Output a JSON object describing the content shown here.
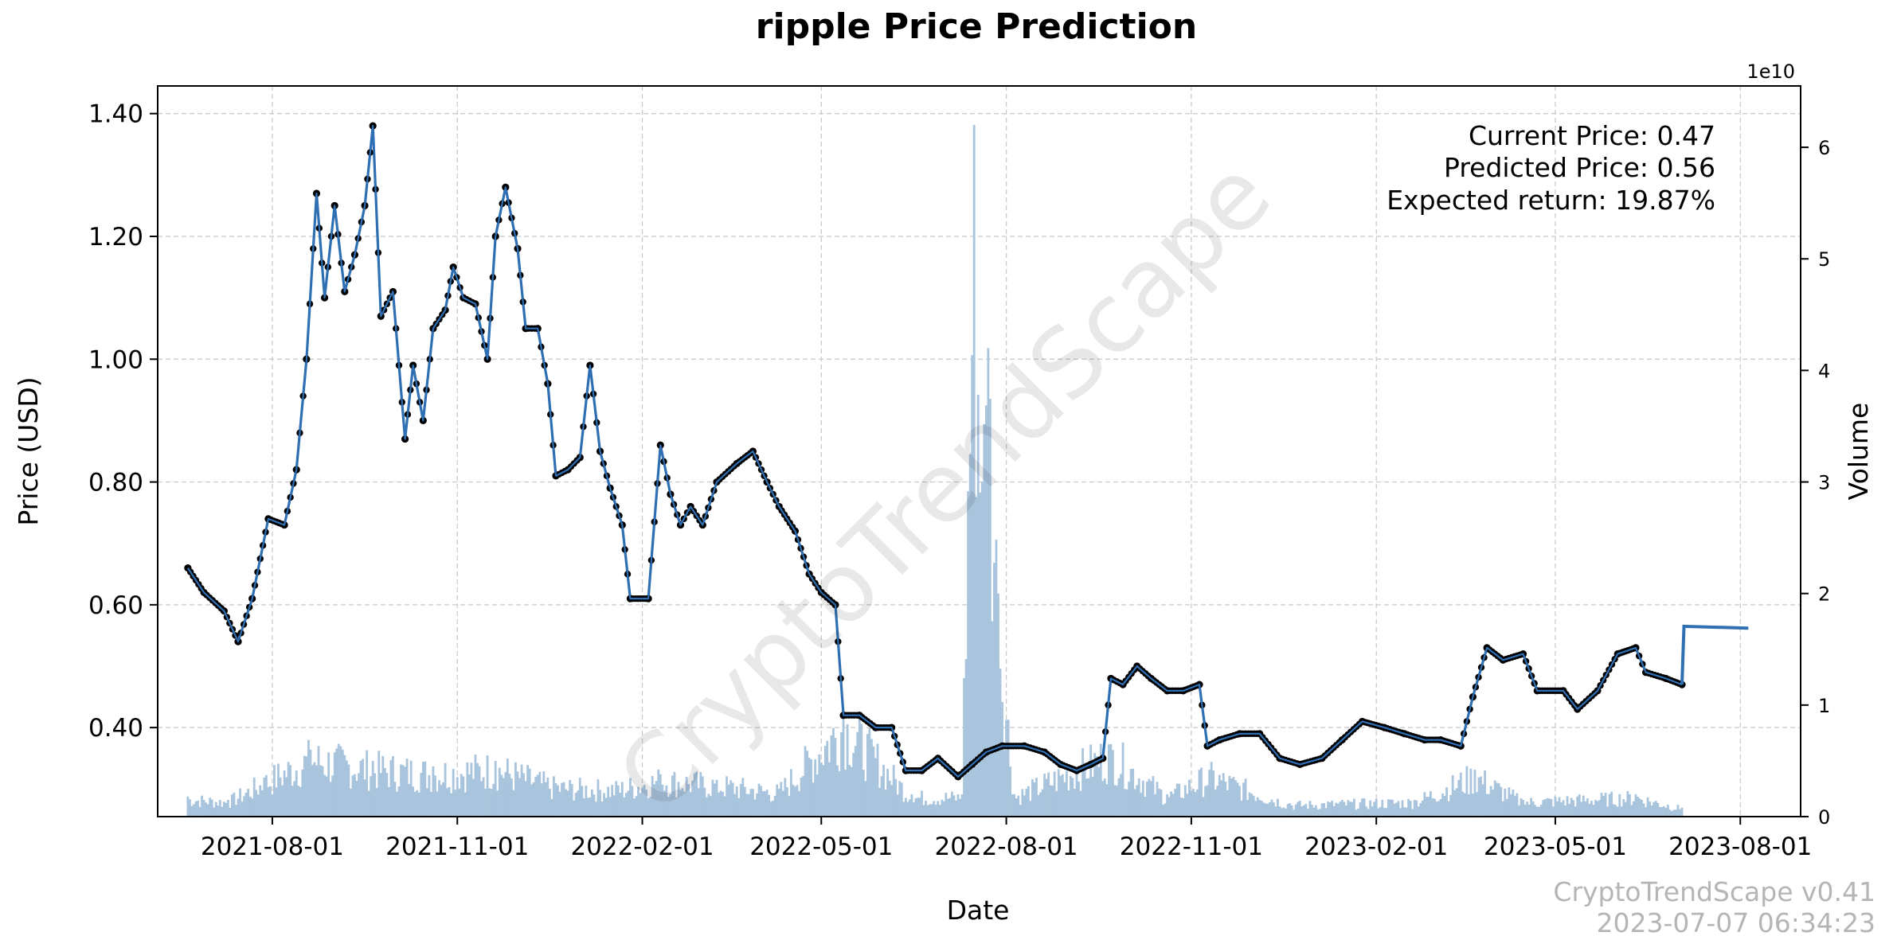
{
  "chart_data": {
    "type": "line",
    "title": "ripple Price Prediction",
    "xlabel": "Date",
    "ylabel": "Price (USD)",
    "y2label": "Volume",
    "y2_offset_label": "1e10",
    "x_ticks": [
      "2021-08-01",
      "2021-11-01",
      "2022-02-01",
      "2022-05-01",
      "2022-08-01",
      "2022-11-01",
      "2023-02-01",
      "2023-05-01",
      "2023-08-01"
    ],
    "y_ticks": [
      "0.40",
      "0.60",
      "0.80",
      "1.00",
      "1.20",
      "1.40"
    ],
    "y2_ticks": [
      "0",
      "1",
      "2",
      "3",
      "4",
      "5",
      "6"
    ],
    "xlim": [
      "2021-06-05",
      "2023-08-31"
    ],
    "ylim": [
      0.255,
      1.445
    ],
    "y2lim": [
      0,
      65500000000.0
    ],
    "grid": true,
    "series": [
      {
        "name": "Price",
        "color": "#2f6fb3",
        "marker_color": "#000000",
        "points": [
          [
            "2021-06-20",
            0.66
          ],
          [
            "2021-06-28",
            0.62
          ],
          [
            "2021-07-08",
            0.59
          ],
          [
            "2021-07-15",
            0.54
          ],
          [
            "2021-07-22",
            0.61
          ],
          [
            "2021-07-30",
            0.74
          ],
          [
            "2021-08-07",
            0.73
          ],
          [
            "2021-08-13",
            0.82
          ],
          [
            "2021-08-18",
            1.0
          ],
          [
            "2021-08-23",
            1.27
          ],
          [
            "2021-08-27",
            1.1
          ],
          [
            "2021-09-01",
            1.25
          ],
          [
            "2021-09-06",
            1.11
          ],
          [
            "2021-09-11",
            1.17
          ],
          [
            "2021-09-16",
            1.25
          ],
          [
            "2021-09-20",
            1.38
          ],
          [
            "2021-09-24",
            1.07
          ],
          [
            "2021-09-30",
            1.11
          ],
          [
            "2021-10-06",
            0.87
          ],
          [
            "2021-10-10",
            0.99
          ],
          [
            "2021-10-15",
            0.9
          ],
          [
            "2021-10-20",
            1.05
          ],
          [
            "2021-10-26",
            1.08
          ],
          [
            "2021-10-30",
            1.15
          ],
          [
            "2021-11-04",
            1.1
          ],
          [
            "2021-11-10",
            1.09
          ],
          [
            "2021-11-16",
            1.0
          ],
          [
            "2021-11-20",
            1.2
          ],
          [
            "2021-11-25",
            1.28
          ],
          [
            "2021-12-01",
            1.18
          ],
          [
            "2021-12-05",
            1.05
          ],
          [
            "2021-12-11",
            1.05
          ],
          [
            "2021-12-16",
            0.96
          ],
          [
            "2021-12-20",
            0.81
          ],
          [
            "2021-12-26",
            0.82
          ],
          [
            "2022-01-01",
            0.84
          ],
          [
            "2022-01-06",
            0.99
          ],
          [
            "2022-01-11",
            0.85
          ],
          [
            "2022-01-16",
            0.79
          ],
          [
            "2022-01-22",
            0.73
          ],
          [
            "2022-01-26",
            0.61
          ],
          [
            "2022-02-04",
            0.61
          ],
          [
            "2022-02-10",
            0.86
          ],
          [
            "2022-02-15",
            0.78
          ],
          [
            "2022-02-20",
            0.73
          ],
          [
            "2022-02-25",
            0.76
          ],
          [
            "2022-03-03",
            0.73
          ],
          [
            "2022-03-10",
            0.8
          ],
          [
            "2022-03-20",
            0.83
          ],
          [
            "2022-03-28",
            0.85
          ],
          [
            "2022-04-04",
            0.8
          ],
          [
            "2022-04-10",
            0.76
          ],
          [
            "2022-04-18",
            0.72
          ],
          [
            "2022-04-25",
            0.65
          ],
          [
            "2022-05-01",
            0.62
          ],
          [
            "2022-05-08",
            0.6
          ],
          [
            "2022-05-12",
            0.42
          ],
          [
            "2022-05-20",
            0.42
          ],
          [
            "2022-05-28",
            0.4
          ],
          [
            "2022-06-05",
            0.4
          ],
          [
            "2022-06-12",
            0.33
          ],
          [
            "2022-06-20",
            0.33
          ],
          [
            "2022-06-28",
            0.35
          ],
          [
            "2022-07-08",
            0.32
          ],
          [
            "2022-07-15",
            0.34
          ],
          [
            "2022-07-22",
            0.36
          ],
          [
            "2022-07-30",
            0.37
          ],
          [
            "2022-08-10",
            0.37
          ],
          [
            "2022-08-20",
            0.36
          ],
          [
            "2022-08-28",
            0.34
          ],
          [
            "2022-09-05",
            0.33
          ],
          [
            "2022-09-12",
            0.34
          ],
          [
            "2022-09-18",
            0.35
          ],
          [
            "2022-09-22",
            0.48
          ],
          [
            "2022-09-28",
            0.47
          ],
          [
            "2022-10-05",
            0.5
          ],
          [
            "2022-10-12",
            0.48
          ],
          [
            "2022-10-20",
            0.46
          ],
          [
            "2022-10-28",
            0.46
          ],
          [
            "2022-11-05",
            0.47
          ],
          [
            "2022-11-09",
            0.37
          ],
          [
            "2022-11-15",
            0.38
          ],
          [
            "2022-11-25",
            0.39
          ],
          [
            "2022-12-05",
            0.39
          ],
          [
            "2022-12-15",
            0.35
          ],
          [
            "2022-12-25",
            0.34
          ],
          [
            "2023-01-05",
            0.35
          ],
          [
            "2023-01-15",
            0.38
          ],
          [
            "2023-01-25",
            0.41
          ],
          [
            "2023-02-05",
            0.4
          ],
          [
            "2023-02-15",
            0.39
          ],
          [
            "2023-02-25",
            0.38
          ],
          [
            "2023-03-05",
            0.38
          ],
          [
            "2023-03-15",
            0.37
          ],
          [
            "2023-03-21",
            0.45
          ],
          [
            "2023-03-28",
            0.53
          ],
          [
            "2023-04-05",
            0.51
          ],
          [
            "2023-04-15",
            0.52
          ],
          [
            "2023-04-22",
            0.46
          ],
          [
            "2023-05-05",
            0.46
          ],
          [
            "2023-05-12",
            0.43
          ],
          [
            "2023-05-22",
            0.46
          ],
          [
            "2023-06-01",
            0.52
          ],
          [
            "2023-06-10",
            0.53
          ],
          [
            "2023-06-15",
            0.49
          ],
          [
            "2023-06-25",
            0.48
          ],
          [
            "2023-07-03",
            0.47
          ]
        ]
      },
      {
        "name": "Prediction",
        "color": "#2f6fb3",
        "points": [
          [
            "2023-07-03",
            0.47
          ],
          [
            "2023-07-04",
            0.565
          ],
          [
            "2023-08-05",
            0.562
          ]
        ]
      }
    ],
    "volume": {
      "color": "#a9c4dd",
      "points": [
        [
          "2021-06-20",
          1800000000.0
        ],
        [
          "2021-07-10",
          1500000000.0
        ],
        [
          "2021-07-28",
          3500000000.0
        ],
        [
          "2021-08-20",
          6000000000.0
        ],
        [
          "2021-09-20",
          5000000000.0
        ],
        [
          "2021-10-20",
          4500000000.0
        ],
        [
          "2021-11-20",
          5000000000.0
        ],
        [
          "2021-12-20",
          3000000000.0
        ],
        [
          "2022-01-20",
          2800000000.0
        ],
        [
          "2022-02-10",
          3800000000.0
        ],
        [
          "2022-03-10",
          3300000000.0
        ],
        [
          "2022-04-10",
          2500000000.0
        ],
        [
          "2022-05-12",
          9500000000.0
        ],
        [
          "2022-06-15",
          2000000000.0
        ],
        [
          "2022-07-10",
          2000000000.0
        ],
        [
          "2022-07-16",
          62000000000.0
        ],
        [
          "2022-07-20",
          30000000000.0
        ],
        [
          "2022-07-23",
          42000000000.0
        ],
        [
          "2022-07-28",
          20000000000.0
        ],
        [
          "2022-08-05",
          2000000000.0
        ],
        [
          "2022-09-22",
          6500000000.0
        ],
        [
          "2022-10-20",
          2000000000.0
        ],
        [
          "2022-11-10",
          4200000000.0
        ],
        [
          "2022-12-20",
          1200000000.0
        ],
        [
          "2023-02-20",
          1500000000.0
        ],
        [
          "2023-03-22",
          4200000000.0
        ],
        [
          "2023-04-15",
          1500000000.0
        ],
        [
          "2023-06-10",
          2000000000.0
        ],
        [
          "2023-07-03",
          800000000.0
        ]
      ]
    },
    "annotations": [
      "Current Price: 0.47",
      "Predicted Price: 0.56",
      "Expected return: 19.87%"
    ],
    "watermark": "CryptoTrendScape",
    "footer": [
      "CryptoTrendScape v0.41",
      "2023-07-07 06:34:23"
    ]
  }
}
